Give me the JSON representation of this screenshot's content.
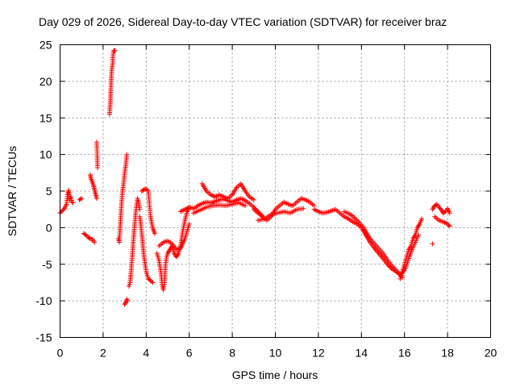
{
  "chart_data": {
    "type": "scatter",
    "title": "Day 029 of 2026, Sidereal Day-to-day VTEC variation (SDTVAR) for receiver braz",
    "xlabel": "GPS time / hours",
    "ylabel": "SDTVAR / TECUs",
    "xlim": [
      0,
      20
    ],
    "ylim": [
      -15,
      25
    ],
    "xticks": [
      "0",
      "2",
      "4",
      "6",
      "8",
      "10",
      "12",
      "14",
      "16",
      "18",
      "20"
    ],
    "yticks": [
      "-15",
      "-10",
      "-5",
      "0",
      "5",
      "10",
      "15",
      "20",
      "25"
    ],
    "grid": true,
    "marker": "+",
    "series": [
      {
        "name": "SDTVAR",
        "color": "#ff0000",
        "segments": [
          {
            "x": [
              0.0,
              0.1,
              0.2,
              0.3,
              0.35,
              0.4,
              0.45,
              0.5,
              0.55,
              0.6
            ],
            "y": [
              2.0,
              2.3,
              2.6,
              3.2,
              4.5,
              5.1,
              3.8,
              4.2,
              3.5,
              3.4
            ]
          },
          {
            "x": [
              0.9,
              1.0
            ],
            "y": [
              3.8,
              4.0
            ]
          },
          {
            "x": [
              1.1,
              1.2,
              1.3,
              1.4,
              1.5,
              1.55,
              1.6
            ],
            "y": [
              -0.8,
              -1.0,
              -1.3,
              -1.5,
              -1.6,
              -1.8,
              -2.0
            ]
          },
          {
            "x": [
              1.4,
              1.45,
              1.5,
              1.55,
              1.6,
              1.65,
              1.7
            ],
            "y": [
              7.2,
              6.6,
              6.2,
              5.8,
              5.2,
              4.6,
              4.0
            ]
          },
          {
            "x": [
              1.7,
              1.72,
              1.74
            ],
            "y": [
              11.7,
              10.6,
              8.2
            ]
          },
          {
            "x": [
              2.3,
              2.32,
              2.34,
              2.36,
              2.38,
              2.4,
              2.42,
              2.44,
              2.46,
              2.48,
              2.5,
              2.52,
              2.55
            ],
            "y": [
              15.5,
              16.5,
              17.5,
              19.0,
              20.5,
              21.5,
              22.0,
              22.5,
              23.5,
              24.0,
              24.2,
              24.2,
              24.2
            ]
          },
          {
            "x": [
              2.7,
              2.75,
              2.8,
              2.85,
              2.9,
              2.95,
              3.0,
              3.05,
              3.1
            ],
            "y": [
              -1.5,
              -2.0,
              0.5,
              3.0,
              5.0,
              6.0,
              7.5,
              8.5,
              10.0
            ]
          },
          {
            "x": [
              3.0,
              3.05,
              3.1,
              3.15
            ],
            "y": [
              -10.5,
              -10.2,
              -9.8,
              -10.0
            ]
          },
          {
            "x": [
              3.2,
              3.25,
              3.3,
              3.35,
              3.4,
              3.45,
              3.5,
              3.55,
              3.6,
              3.65,
              3.7
            ],
            "y": [
              -8.0,
              -7.5,
              -6.0,
              -4.0,
              -2.0,
              0.0,
              1.5,
              3.0,
              4.0,
              3.5,
              2.5
            ]
          },
          {
            "x": [
              3.7,
              3.75,
              3.8,
              3.85,
              3.9,
              3.95,
              4.0,
              4.05,
              4.1,
              4.2,
              4.3
            ],
            "y": [
              1.5,
              0.5,
              -1.0,
              -2.5,
              -4.0,
              -5.0,
              -6.0,
              -6.5,
              -7.0,
              -7.2,
              -7.5
            ]
          },
          {
            "x": [
              3.8,
              3.9,
              4.0,
              4.1,
              4.2,
              4.3,
              4.4
            ],
            "y": [
              5.0,
              5.2,
              5.3,
              5.0,
              1.5,
              0.0,
              -0.8
            ]
          },
          {
            "x": [
              4.5,
              4.6,
              4.7,
              4.75,
              4.8,
              4.85,
              4.9,
              4.95,
              5.0,
              5.1,
              5.2,
              5.3,
              5.4,
              5.5,
              5.6,
              5.7,
              5.8,
              5.9,
              6.0
            ],
            "y": [
              -3.5,
              -4.5,
              -6.5,
              -8.0,
              -8.5,
              -7.5,
              -5.0,
              -4.0,
              -3.5,
              -3.0,
              -2.5,
              -3.5,
              -4.0,
              -3.5,
              -2.5,
              -0.5,
              1.0,
              2.2,
              2.8
            ]
          },
          {
            "x": [
              4.6,
              4.8,
              5.0,
              5.2,
              5.4,
              5.6,
              5.8,
              6.0
            ],
            "y": [
              -2.5,
              -2.0,
              -1.8,
              -2.2,
              -3.0,
              -2.8,
              -1.5,
              0.5
            ]
          },
          {
            "x": [
              5.6,
              5.8,
              6.0,
              6.2,
              6.4,
              6.6,
              6.8,
              7.0,
              7.2,
              7.4,
              7.6,
              7.8,
              8.0,
              8.2,
              8.4,
              8.6,
              8.8,
              9.0,
              9.2,
              9.4
            ],
            "y": [
              2.2,
              2.5,
              2.8,
              2.6,
              3.0,
              3.3,
              3.5,
              3.4,
              3.6,
              3.8,
              3.9,
              3.7,
              3.5,
              3.8,
              4.0,
              3.7,
              3.3,
              2.8,
              2.2,
              1.6
            ]
          },
          {
            "x": [
              6.6,
              6.8,
              7.0,
              7.2,
              7.4,
              7.6,
              7.8,
              8.0,
              8.2,
              8.4,
              8.6,
              8.8,
              9.0
            ],
            "y": [
              6.0,
              5.0,
              4.5,
              4.2,
              4.5,
              4.2,
              4.0,
              4.5,
              5.5,
              6.0,
              5.0,
              4.2,
              3.8
            ]
          },
          {
            "x": [
              6.2,
              6.5,
              6.8,
              7.1,
              7.4,
              7.7,
              8.0,
              8.3,
              8.6
            ],
            "y": [
              2.0,
              2.4,
              2.8,
              3.0,
              3.1,
              3.0,
              3.2,
              3.4,
              3.0
            ]
          },
          {
            "x": [
              9.0,
              9.2,
              9.4,
              9.6,
              9.8,
              10.0,
              10.2,
              10.4,
              10.6,
              10.8,
              11.0,
              11.2,
              11.4,
              11.6,
              11.8
            ],
            "y": [
              2.5,
              2.0,
              1.5,
              1.0,
              1.5,
              2.5,
              3.0,
              3.5,
              3.2,
              3.0,
              3.5,
              4.0,
              3.8,
              3.5,
              3.0
            ]
          },
          {
            "x": [
              9.2,
              9.5,
              9.8,
              10.1,
              10.4,
              10.7,
              11.0,
              11.3
            ],
            "y": [
              1.0,
              1.2,
              1.8,
              2.0,
              2.2,
              2.0,
              2.5,
              2.6
            ]
          },
          {
            "x": [
              11.8,
              12.0,
              12.2,
              12.4,
              12.6,
              12.8,
              13.0,
              13.2,
              13.4,
              13.6,
              13.8,
              14.0,
              14.2,
              14.4,
              14.6,
              14.8,
              15.0,
              15.2,
              15.4,
              15.6,
              15.8
            ],
            "y": [
              2.5,
              2.2,
              2.0,
              2.1,
              2.3,
              2.5,
              2.0,
              1.5,
              1.2,
              0.8,
              0.5,
              0.0,
              -1.0,
              -2.0,
              -2.8,
              -3.5,
              -4.2,
              -5.0,
              -5.6,
              -6.0,
              -6.4
            ]
          },
          {
            "x": [
              13.2,
              13.5,
              13.8,
              14.1,
              14.4,
              14.7,
              15.0,
              15.3,
              15.6,
              15.9
            ],
            "y": [
              2.2,
              1.8,
              1.0,
              0.0,
              -1.5,
              -2.5,
              -3.5,
              -4.8,
              -5.8,
              -6.8
            ]
          },
          {
            "x": [
              15.8,
              15.9,
              16.0,
              16.1,
              16.2,
              16.3,
              16.4,
              16.5,
              16.6,
              16.7,
              16.8
            ],
            "y": [
              -7.0,
              -6.0,
              -5.0,
              -4.0,
              -3.0,
              -2.5,
              -1.5,
              -1.0,
              0.0,
              0.5,
              1.2
            ]
          },
          {
            "x": [
              15.9,
              16.05,
              16.2,
              16.35,
              16.5,
              16.65
            ],
            "y": [
              -6.2,
              -5.5,
              -4.2,
              -3.0,
              -2.0,
              -1.0
            ]
          },
          {
            "x": [
              17.3,
              17.4,
              17.5,
              17.6,
              17.7,
              17.8,
              17.9,
              18.0,
              18.1
            ],
            "y": [
              2.5,
              3.0,
              3.2,
              2.8,
              2.5,
              2.0,
              2.2,
              2.6,
              2.0
            ]
          },
          {
            "x": [
              17.4,
              17.6,
              17.8,
              18.0,
              18.1
            ],
            "y": [
              1.5,
              1.0,
              0.8,
              0.5,
              0.2
            ]
          },
          {
            "x": [
              17.3
            ],
            "y": [
              -2.2
            ]
          }
        ]
      }
    ]
  }
}
